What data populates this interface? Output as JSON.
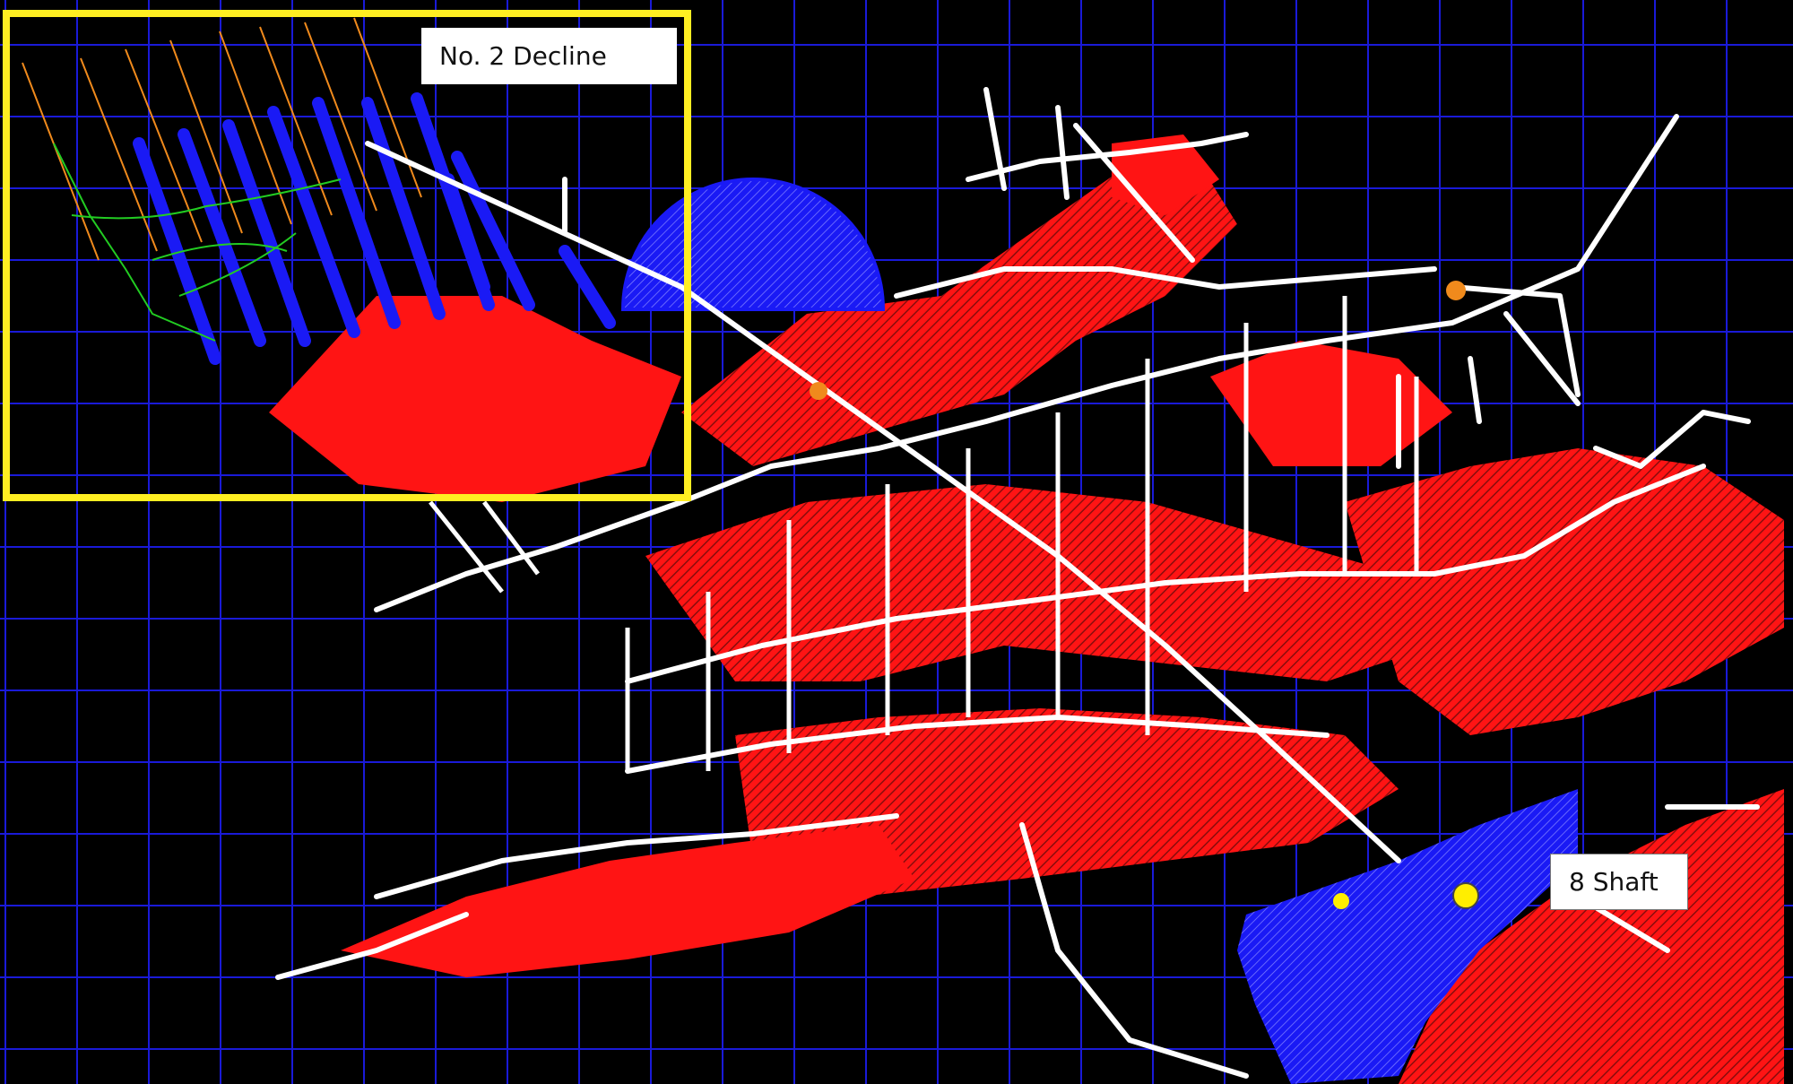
{
  "map": {
    "background_color": "#000000",
    "grid_color": "#1a1ad8",
    "palette": {
      "stopes": "#ff1414",
      "stope_hatch": "#8a0d0d",
      "drives": "#ffffff",
      "design": "#1a1af5",
      "decline_trace": "#22cc22",
      "highlight_box": "#ffee22",
      "marker_orange": "#f08a1c",
      "marker_yellow": "#ffee00"
    },
    "labels": {
      "decline": "No. 2 Decline",
      "shaft": "8 Shaft"
    },
    "markers": [
      {
        "name": "survey-point",
        "color": "orange"
      },
      {
        "name": "survey-point",
        "color": "orange"
      },
      {
        "name": "shaft-collar",
        "color": "yellow"
      },
      {
        "name": "station",
        "color": "yellow"
      }
    ]
  }
}
